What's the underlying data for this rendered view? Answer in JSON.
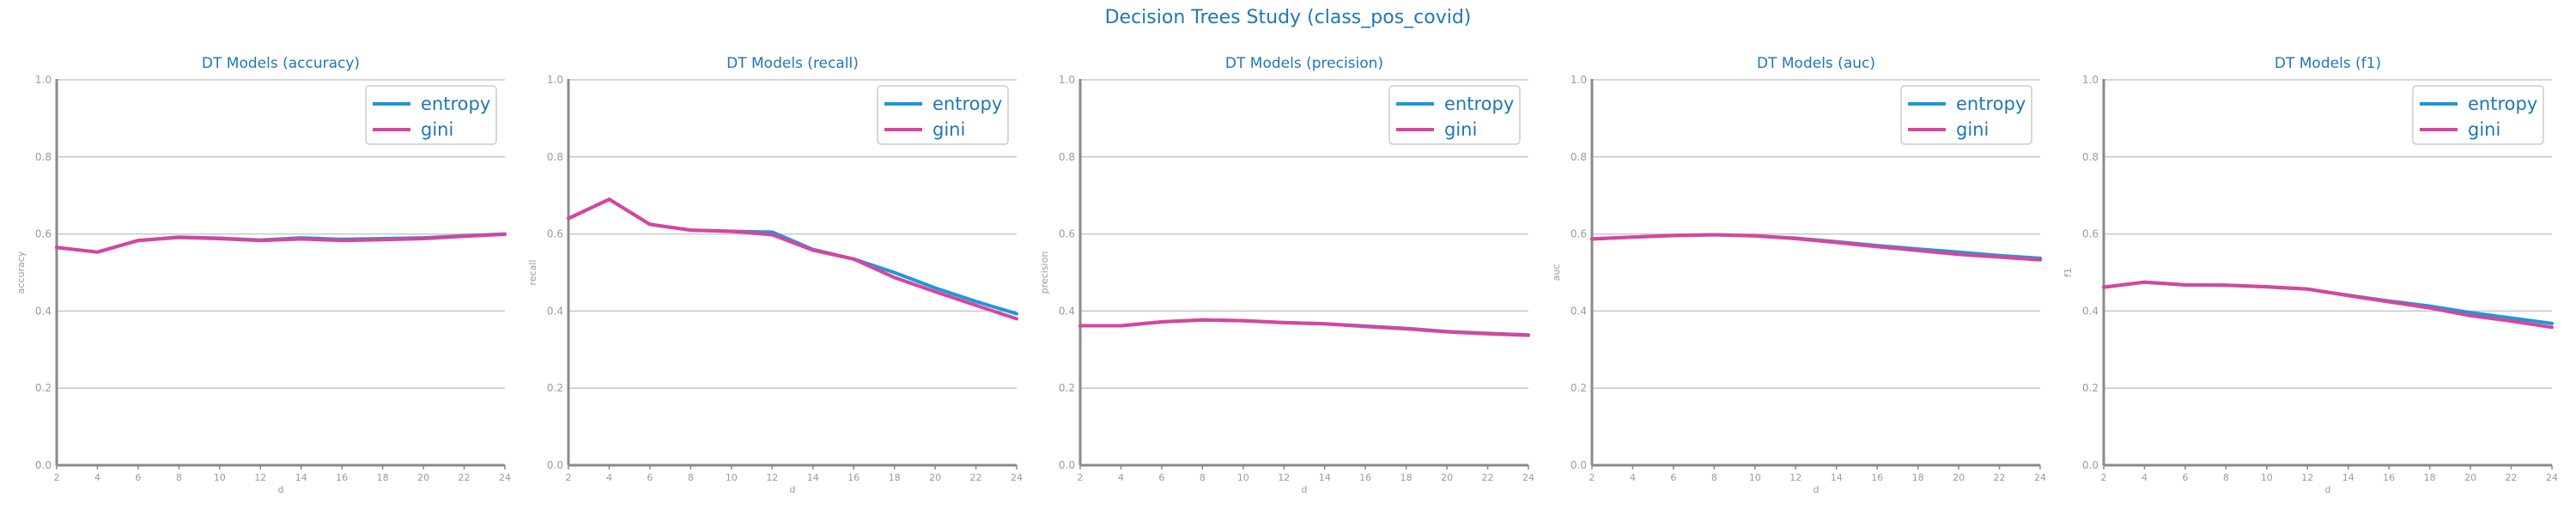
{
  "figure": {
    "suptitle": "Decision Trees Study (class_pos_covid)"
  },
  "colors": {
    "entropy": "#1f97d8",
    "gini": "#d9449d",
    "title": "#1f77b4",
    "axis": "#8a8a8a",
    "grid": "#c8c8c8",
    "tick_label": "#9a9a9a"
  },
  "chart_data": [
    {
      "type": "line",
      "title": "DT Models (accuracy)",
      "xlabel": "d",
      "ylabel": "accuracy",
      "x": [
        2,
        4,
        6,
        8,
        10,
        12,
        14,
        16,
        18,
        20,
        22,
        24
      ],
      "xticks": [
        2,
        4,
        6,
        8,
        10,
        12,
        14,
        16,
        18,
        20,
        22,
        24
      ],
      "xlim": [
        2,
        24
      ],
      "ylim": [
        0.0,
        1.0
      ],
      "yticks": [
        "0.0",
        "0.2",
        "0.4",
        "0.6",
        "0.8",
        "1.0"
      ],
      "grid": "horizontal",
      "legend": "top-right",
      "series": [
        {
          "name": "entropy",
          "values": [
            0.565,
            0.553,
            0.583,
            0.592,
            0.589,
            0.584,
            0.59,
            0.586,
            0.588,
            0.59,
            0.595,
            0.6
          ]
        },
        {
          "name": "gini",
          "values": [
            0.565,
            0.553,
            0.583,
            0.591,
            0.588,
            0.583,
            0.587,
            0.583,
            0.585,
            0.588,
            0.594,
            0.599
          ]
        }
      ]
    },
    {
      "type": "line",
      "title": "DT Models (recall)",
      "xlabel": "d",
      "ylabel": "recall",
      "x": [
        2,
        4,
        6,
        8,
        10,
        12,
        14,
        16,
        18,
        20,
        22,
        24
      ],
      "xticks": [
        2,
        4,
        6,
        8,
        10,
        12,
        14,
        16,
        18,
        20,
        22,
        24
      ],
      "xlim": [
        2,
        24
      ],
      "ylim": [
        0.0,
        1.0
      ],
      "yticks": [
        "0.0",
        "0.2",
        "0.4",
        "0.6",
        "0.8",
        "1.0"
      ],
      "grid": "horizontal",
      "legend": "top-right",
      "series": [
        {
          "name": "entropy",
          "values": [
            0.64,
            0.69,
            0.625,
            0.61,
            0.607,
            0.605,
            0.56,
            0.535,
            0.5,
            0.46,
            0.425,
            0.393
          ]
        },
        {
          "name": "gini",
          "values": [
            0.64,
            0.69,
            0.625,
            0.61,
            0.607,
            0.598,
            0.558,
            0.535,
            0.487,
            0.45,
            0.415,
            0.38
          ]
        }
      ]
    },
    {
      "type": "line",
      "title": "DT Models (precision)",
      "xlabel": "d",
      "ylabel": "precision",
      "x": [
        2,
        4,
        6,
        8,
        10,
        12,
        14,
        16,
        18,
        20,
        22,
        24
      ],
      "xticks": [
        2,
        4,
        6,
        8,
        10,
        12,
        14,
        16,
        18,
        20,
        22,
        24
      ],
      "xlim": [
        2,
        24
      ],
      "ylim": [
        0.0,
        1.0
      ],
      "yticks": [
        "0.0",
        "0.2",
        "0.4",
        "0.6",
        "0.8",
        "1.0"
      ],
      "grid": "horizontal",
      "legend": "top-right",
      "series": [
        {
          "name": "entropy",
          "values": [
            0.362,
            0.362,
            0.372,
            0.377,
            0.375,
            0.37,
            0.367,
            0.361,
            0.355,
            0.347,
            0.342,
            0.338
          ]
        },
        {
          "name": "gini",
          "values": [
            0.362,
            0.362,
            0.372,
            0.377,
            0.375,
            0.37,
            0.367,
            0.36,
            0.354,
            0.346,
            0.341,
            0.337
          ]
        }
      ]
    },
    {
      "type": "line",
      "title": "DT Models (auc)",
      "xlabel": "d",
      "ylabel": "auc",
      "x": [
        2,
        4,
        6,
        8,
        10,
        12,
        14,
        16,
        18,
        20,
        22,
        24
      ],
      "xticks": [
        2,
        4,
        6,
        8,
        10,
        12,
        14,
        16,
        18,
        20,
        22,
        24
      ],
      "xlim": [
        2,
        24
      ],
      "ylim": [
        0.0,
        1.0
      ],
      "yticks": [
        "0.0",
        "0.2",
        "0.4",
        "0.6",
        "0.8",
        "1.0"
      ],
      "grid": "horizontal",
      "legend": "top-right",
      "series": [
        {
          "name": "entropy",
          "values": [
            0.587,
            0.592,
            0.596,
            0.598,
            0.595,
            0.589,
            0.58,
            0.57,
            0.561,
            0.553,
            0.544,
            0.537
          ]
        },
        {
          "name": "gini",
          "values": [
            0.587,
            0.592,
            0.596,
            0.598,
            0.595,
            0.588,
            0.578,
            0.567,
            0.557,
            0.547,
            0.54,
            0.533
          ]
        }
      ]
    },
    {
      "type": "line",
      "title": "DT Models (f1)",
      "xlabel": "d",
      "ylabel": "f1",
      "x": [
        2,
        4,
        6,
        8,
        10,
        12,
        14,
        16,
        18,
        20,
        22,
        24
      ],
      "xticks": [
        2,
        4,
        6,
        8,
        10,
        12,
        14,
        16,
        18,
        20,
        22,
        24
      ],
      "xlim": [
        2,
        24
      ],
      "ylim": [
        0.0,
        1.0
      ],
      "yticks": [
        "0.0",
        "0.2",
        "0.4",
        "0.6",
        "0.8",
        "1.0"
      ],
      "grid": "horizontal",
      "legend": "top-right",
      "series": [
        {
          "name": "entropy",
          "values": [
            0.462,
            0.475,
            0.468,
            0.467,
            0.463,
            0.457,
            0.441,
            0.426,
            0.413,
            0.396,
            0.382,
            0.368
          ]
        },
        {
          "name": "gini",
          "values": [
            0.462,
            0.475,
            0.468,
            0.467,
            0.463,
            0.457,
            0.44,
            0.424,
            0.408,
            0.388,
            0.374,
            0.358
          ]
        }
      ]
    }
  ]
}
